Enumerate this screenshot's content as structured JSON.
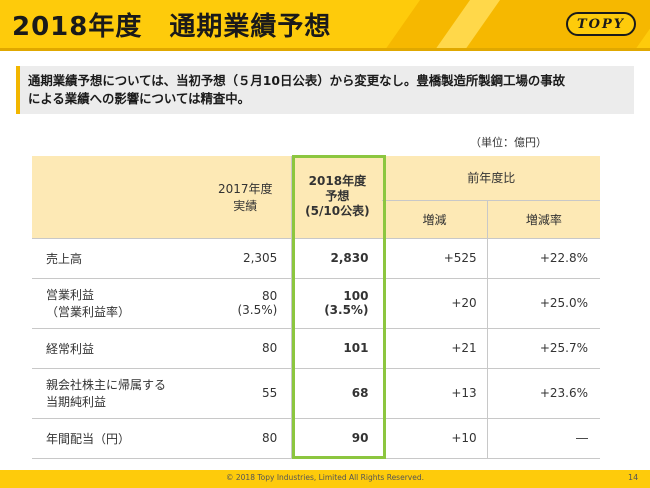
{
  "header": {
    "title": "2018年度　通期業績予想",
    "logo_text": "TOPY"
  },
  "summary": {
    "line1": "通期業績予想については、当初予想（５月10日公表）から変更なし。豊橋製造所製鋼工場の事故",
    "line2": "による業績への影響については精査中。"
  },
  "unit_label": "（単位：億円）",
  "table": {
    "head": {
      "prev_year": [
        "2017年度",
        "実績"
      ],
      "forecast": [
        "2018年度",
        "予想",
        "(5/10公表)"
      ],
      "yoy": "前年度比",
      "diff": "増減",
      "rate": "増減率"
    },
    "rows": [
      {
        "label": [
          "売上高"
        ],
        "prev": [
          "2,305"
        ],
        "forecast": [
          "2,830"
        ],
        "diff": "+525",
        "rate": "+22.8%"
      },
      {
        "label": [
          "営業利益",
          "（営業利益率）"
        ],
        "prev": [
          "80",
          "(3.5%)"
        ],
        "forecast": [
          "100",
          "(3.5%)"
        ],
        "diff": "+20",
        "rate": "+25.0%"
      },
      {
        "label": [
          "経常利益"
        ],
        "prev": [
          "80"
        ],
        "forecast": [
          "101"
        ],
        "diff": "+21",
        "rate": "+25.7%"
      },
      {
        "label": [
          "親会社株主に帰属する",
          "当期純利益"
        ],
        "prev": [
          "55"
        ],
        "forecast": [
          "68"
        ],
        "diff": "+13",
        "rate": "+23.6%"
      },
      {
        "label": [
          "年間配当（円）"
        ],
        "prev": [
          "80"
        ],
        "forecast": [
          "90"
        ],
        "diff": "+10",
        "rate": "―"
      }
    ]
  },
  "footer": {
    "copyright": "© 2018 Topy Industries, Limited All Rights Reserved.",
    "page": "14"
  },
  "colors": {
    "brand_yellow": "#fecb0b",
    "header_cell": "#fde9b5",
    "highlight_border": "#8cc63f"
  }
}
